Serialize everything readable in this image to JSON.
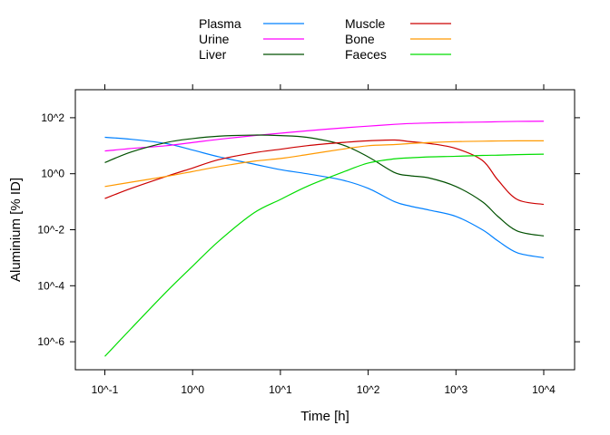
{
  "chart_data": {
    "type": "line",
    "xlabel": "Time [h]",
    "ylabel": "Aluminium [% ID]",
    "x_scale": "log10",
    "y_scale": "log10",
    "xlim": [
      0.1,
      10000
    ],
    "ylim": [
      1e-07,
      1000
    ],
    "x_ticks": [
      {
        "value": 0.1,
        "label": "10^-1"
      },
      {
        "value": 1,
        "label": "10^0"
      },
      {
        "value": 10,
        "label": "10^1"
      },
      {
        "value": 100,
        "label": "10^2"
      },
      {
        "value": 1000,
        "label": "10^3"
      },
      {
        "value": 10000,
        "label": "10^4"
      }
    ],
    "y_ticks": [
      {
        "value": 1e-06,
        "label": "10^-6"
      },
      {
        "value": 0.0001,
        "label": "10^-4"
      },
      {
        "value": 0.01,
        "label": "10^-2"
      },
      {
        "value": 1,
        "label": "10^0"
      },
      {
        "value": 100,
        "label": "10^2"
      }
    ],
    "legend_position": "top",
    "grid": false,
    "x": [
      0.1,
      0.2,
      0.5,
      1,
      2,
      5,
      10,
      20,
      50,
      100,
      200,
      300,
      500,
      1000,
      2000,
      3000,
      5000,
      10000
    ],
    "series": [
      {
        "name": "Plasma",
        "color": "#0080ff",
        "values": [
          20,
          17,
          12,
          7,
          4,
          2.2,
          1.4,
          1.0,
          0.6,
          0.3,
          0.1,
          0.07,
          0.05,
          0.03,
          0.01,
          0.004,
          0.0015,
          0.001
        ]
      },
      {
        "name": "Urine",
        "color": "#ff00ff",
        "values": [
          6.5,
          8,
          10,
          13,
          17,
          23,
          28,
          34,
          43,
          50,
          58,
          62,
          65,
          68,
          70,
          72,
          74,
          75
        ]
      },
      {
        "name": "Liver",
        "color": "#005000",
        "values": [
          2.5,
          6,
          13,
          18,
          22,
          24,
          23,
          20,
          11,
          4,
          1.1,
          0.85,
          0.7,
          0.35,
          0.1,
          0.03,
          0.009,
          0.006
        ]
      },
      {
        "name": "Muscle",
        "color": "#cc0000",
        "values": [
          0.13,
          0.3,
          0.8,
          1.6,
          3.2,
          5.6,
          7.5,
          10,
          13,
          15,
          16,
          14,
          12,
          8,
          3,
          0.6,
          0.12,
          0.08
        ]
      },
      {
        "name": "Bone",
        "color": "#ff9900",
        "values": [
          0.35,
          0.5,
          0.8,
          1.2,
          1.8,
          2.8,
          3.5,
          4.8,
          7.5,
          10,
          11,
          12,
          13,
          14,
          14.5,
          14.8,
          15,
          15
        ]
      },
      {
        "name": "Faeces",
        "color": "#00dd00",
        "values": [
          3e-07,
          3e-06,
          6e-05,
          0.0005,
          0.004,
          0.04,
          0.12,
          0.35,
          1.1,
          2.4,
          3.4,
          3.7,
          4.0,
          4.2,
          4.5,
          4.6,
          4.8,
          5.0
        ]
      }
    ]
  }
}
